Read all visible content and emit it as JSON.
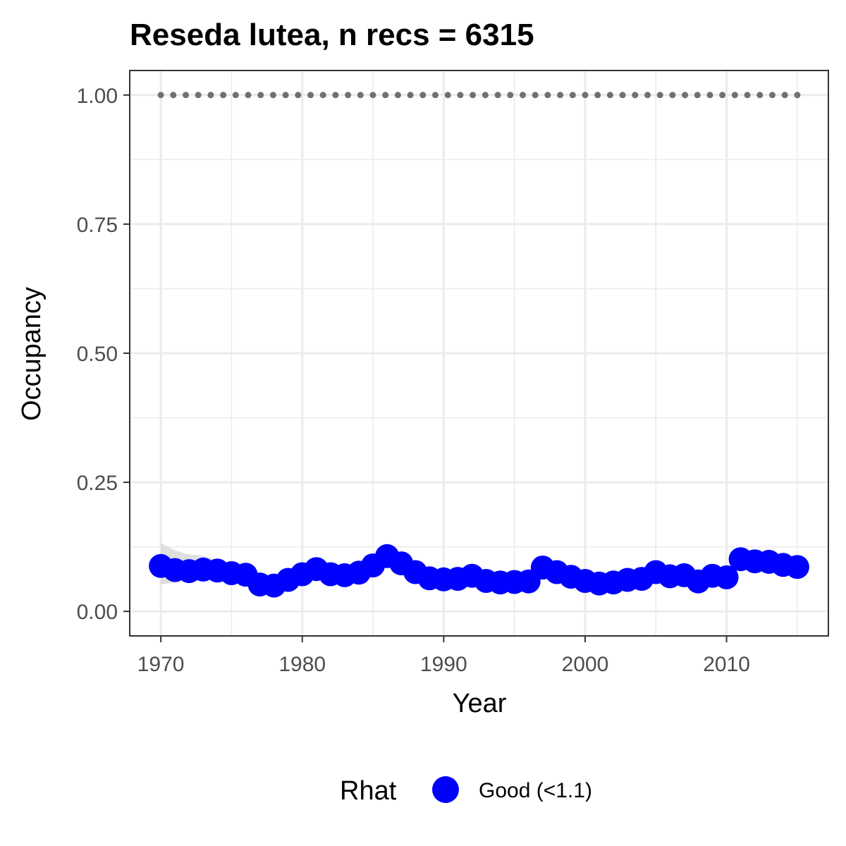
{
  "chart_data": {
    "type": "line",
    "title": "Reseda lutea, n recs = 6315",
    "xlabel": "Year",
    "ylabel": "Occupancy",
    "xlim": [
      1967.8,
      2017.2
    ],
    "ylim": [
      -0.0475,
      1.0475
    ],
    "x_ticks": [
      1970,
      1980,
      1990,
      2000,
      2010
    ],
    "x_tick_labels": [
      "1970",
      "1980",
      "1990",
      "2000",
      "2010"
    ],
    "y_ticks": [
      0,
      0.25,
      0.5,
      0.75,
      1.0
    ],
    "y_tick_labels": [
      "0.00",
      "0.25",
      "0.50",
      "0.75",
      "1.00"
    ],
    "grid": true,
    "legend": {
      "position": "bottom",
      "title": "Rhat",
      "items": [
        {
          "label": "Good (<1.1)",
          "color": "#0000ff"
        }
      ]
    },
    "colors": {
      "points": "#0000ff",
      "ribbon": "#d9d9d9",
      "reference_dots": "#707070",
      "grid": "#ebebeb",
      "panel_border": "#333333"
    },
    "x": [
      1970,
      1971,
      1972,
      1973,
      1974,
      1975,
      1976,
      1977,
      1978,
      1979,
      1980,
      1981,
      1982,
      1983,
      1984,
      1985,
      1986,
      1987,
      1988,
      1989,
      1990,
      1991,
      1992,
      1993,
      1994,
      1995,
      1996,
      1997,
      1998,
      1999,
      2000,
      2001,
      2002,
      2003,
      2004,
      2005,
      2006,
      2007,
      2008,
      2009,
      2010,
      2011,
      2012,
      2013,
      2014,
      2015
    ],
    "series": [
      {
        "values": [
          0.088,
          0.08,
          0.078,
          0.081,
          0.079,
          0.074,
          0.071,
          0.052,
          0.05,
          0.061,
          0.072,
          0.082,
          0.072,
          0.07,
          0.075,
          0.089,
          0.107,
          0.093,
          0.076,
          0.064,
          0.062,
          0.063,
          0.069,
          0.059,
          0.056,
          0.057,
          0.058,
          0.085,
          0.076,
          0.067,
          0.059,
          0.054,
          0.056,
          0.061,
          0.063,
          0.076,
          0.068,
          0.07,
          0.058,
          0.069,
          0.066,
          0.101,
          0.097,
          0.096,
          0.09,
          0.086
        ],
        "lower": [
          0.052,
          0.056,
          0.058,
          0.06,
          0.062,
          0.06,
          0.058,
          0.04,
          0.039,
          0.049,
          0.059,
          0.069,
          0.06,
          0.059,
          0.063,
          0.077,
          0.094,
          0.081,
          0.065,
          0.053,
          0.051,
          0.052,
          0.058,
          0.049,
          0.046,
          0.047,
          0.048,
          0.074,
          0.065,
          0.056,
          0.049,
          0.044,
          0.046,
          0.051,
          0.053,
          0.065,
          0.057,
          0.059,
          0.048,
          0.058,
          0.055,
          0.088,
          0.084,
          0.083,
          0.077,
          0.072
        ],
        "upper": [
          0.132,
          0.118,
          0.11,
          0.108,
          0.1,
          0.093,
          0.088,
          0.066,
          0.064,
          0.075,
          0.087,
          0.097,
          0.086,
          0.083,
          0.089,
          0.103,
          0.122,
          0.107,
          0.089,
          0.077,
          0.075,
          0.076,
          0.082,
          0.071,
          0.068,
          0.069,
          0.07,
          0.098,
          0.089,
          0.08,
          0.071,
          0.066,
          0.068,
          0.073,
          0.075,
          0.089,
          0.081,
          0.083,
          0.07,
          0.082,
          0.079,
          0.116,
          0.112,
          0.111,
          0.105,
          0.102
        ]
      },
      {
        "values": [
          1,
          1,
          1,
          1,
          1,
          1,
          1,
          1,
          1,
          1,
          1,
          1,
          1,
          1,
          1,
          1,
          1,
          1,
          1,
          1,
          1,
          1,
          1,
          1,
          1,
          1,
          1,
          1,
          1,
          1,
          1,
          1,
          1,
          1,
          1,
          1,
          1,
          1,
          1,
          1,
          1,
          1,
          1,
          1,
          1,
          1
        ]
      }
    ]
  }
}
